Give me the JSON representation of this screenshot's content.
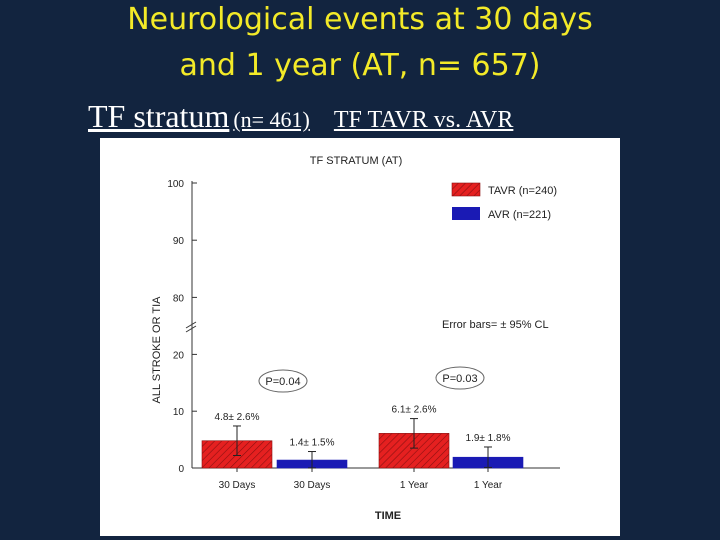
{
  "slide": {
    "title_line1": "Neurological events at 30 days",
    "title_line2": "and 1 year (AT, n= 657)",
    "subtitle_a": "TF stratum",
    "subtitle_b": "(n= 461)",
    "subtitle_c": "TF TAVR vs. AVR"
  },
  "colors": {
    "background": "#12243f",
    "title": "#f3ea28",
    "tavr": "#e52020",
    "avr": "#1a1ab4"
  },
  "chart_data": {
    "type": "bar",
    "title": "TF STRATUM (AT)",
    "xlabel": "TIME",
    "ylabel": "ALL STROKE OR TIA",
    "categories": [
      "30 Days",
      "30 Days",
      "1 Year",
      "1 Year"
    ],
    "series": [
      {
        "name": "TAVR (n=240)",
        "color": "#e52020",
        "hatch": true
      },
      {
        "name": "AVR (n=221)",
        "color": "#1a1ab4",
        "hatch": false
      }
    ],
    "bars": [
      {
        "category": "30 Days",
        "series": "TAVR (n=240)",
        "value": 4.8,
        "error": 2.6,
        "label": "4.8± 2.6%"
      },
      {
        "category": "30 Days",
        "series": "AVR (n=221)",
        "value": 1.4,
        "error": 1.5,
        "label": "1.4± 1.5%"
      },
      {
        "category": "1 Year",
        "series": "TAVR (n=240)",
        "value": 6.1,
        "error": 2.6,
        "label": "6.1± 2.6%"
      },
      {
        "category": "1 Year",
        "series": "AVR (n=221)",
        "value": 1.9,
        "error": 1.8,
        "label": "1.9± 1.8%"
      }
    ],
    "y_ticks": [
      "0",
      "10",
      "20",
      "80",
      "90",
      "100"
    ],
    "y_axis_break": [
      25,
      75
    ],
    "ylim": [
      0,
      100
    ],
    "annotations": {
      "error_bars_note": "Error bars= ± 95% CL",
      "p_values": [
        "P=0.04",
        "P=0.03"
      ]
    },
    "legend_position": "top-right",
    "grid": false
  }
}
